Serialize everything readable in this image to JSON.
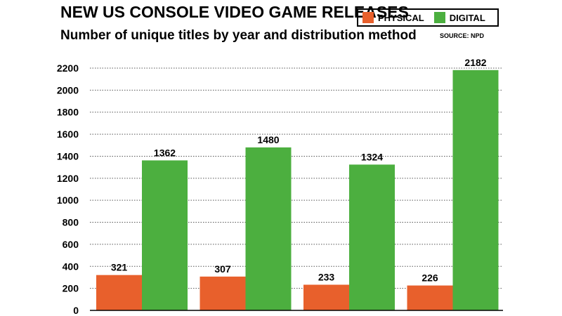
{
  "chart_data": {
    "type": "bar",
    "title": "NEW US CONSOLE VIDEO GAME RELEASES",
    "subtitle": "Number of unique titles by year and distribution method",
    "source": "SOURCE: NPD",
    "categories": [
      "",
      "",
      "",
      ""
    ],
    "series": [
      {
        "name": "PHYSICAL",
        "color": "#e8602c",
        "values": [
          321,
          307,
          233,
          226
        ]
      },
      {
        "name": "DIGITAL",
        "color": "#4caf3f",
        "values": [
          1362,
          1480,
          1324,
          2182
        ]
      }
    ],
    "ylim": [
      0,
      2200
    ],
    "yticks": [
      "0",
      "200",
      "400",
      "600",
      "800",
      "1000",
      "1200",
      "1400",
      "1600",
      "1800",
      "2000",
      "2200"
    ],
    "grid": true,
    "legend_position": "top-right",
    "xlabel": "",
    "ylabel": ""
  }
}
